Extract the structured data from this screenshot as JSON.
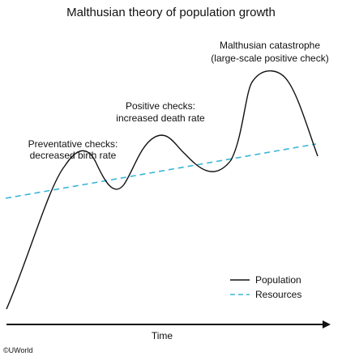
{
  "title": "Malthusian theory of population growth",
  "annotations": {
    "preventative_line1": "Preventative checks:",
    "preventative_line2": "decreased birth rate",
    "positive_line1": "Positive checks:",
    "positive_line2": "increased death rate",
    "catastrophe_line1": "Malthusian catastrophe",
    "catastrophe_line2": "(large-scale positive check)"
  },
  "legend": {
    "population": "Population",
    "resources": "Resources"
  },
  "axis": {
    "xlabel": "Time"
  },
  "copyright": "©UWorld",
  "colors": {
    "population": "#111111",
    "resources": "#3ab6d8",
    "axis": "#111111"
  }
}
